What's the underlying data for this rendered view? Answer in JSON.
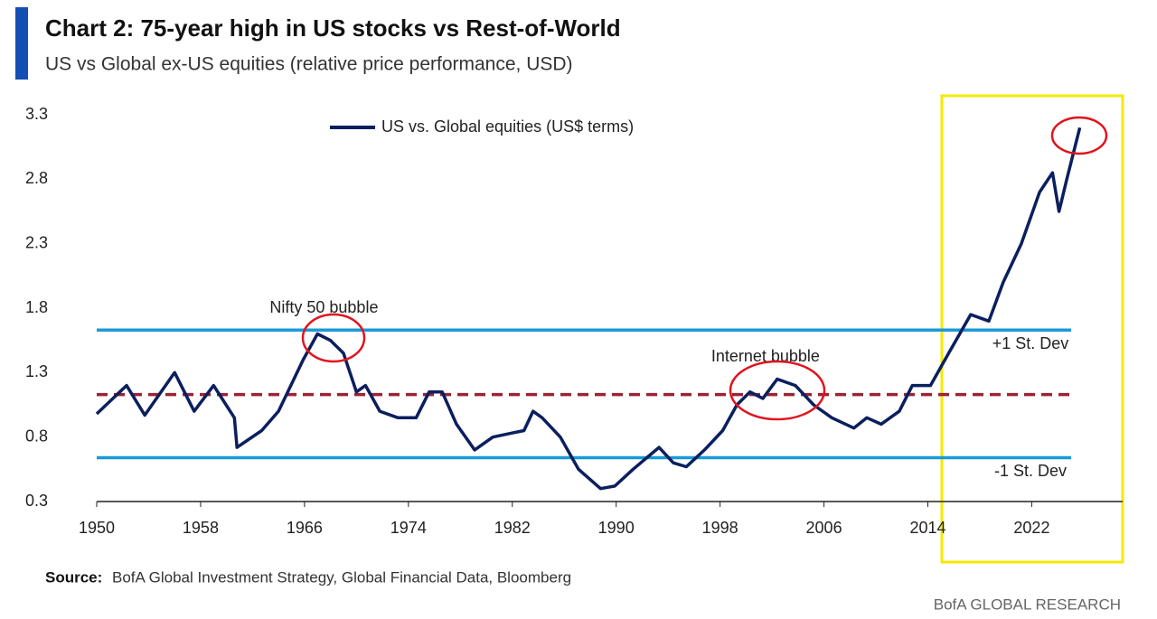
{
  "chart_data": {
    "type": "line",
    "title": "Chart 2: 75-year high in US stocks vs Rest-of-World",
    "subtitle": "US vs Global ex-US equities (relative price performance, USD)",
    "x": [
      1950,
      1952.3,
      1953.7,
      1956,
      1957.5,
      1959,
      1960.6,
      1960.8,
      1962.7,
      1964,
      1965.9,
      1967,
      1968,
      1969,
      1970,
      1970.7,
      1971.8,
      1973.2,
      1974.6,
      1975.6,
      1976.6,
      1977.7,
      1979.1,
      1980.5,
      1981.9,
      1982.9,
      1983.6,
      1984.3,
      1985.7,
      1987.1,
      1988.8,
      1989.9,
      1991.3,
      1993.3,
      1994.4,
      1995.4,
      1996.8,
      1998.2,
      1999.3,
      2000.3,
      2001.3,
      2002.4,
      2003.8,
      2005.2,
      2006.6,
      2008.3,
      2009.3,
      2010.4,
      2011.8,
      2012.8,
      2014.2,
      2015.6,
      2017.3,
      2018.7,
      2019.8,
      2021.2,
      2022.6,
      2023.6,
      2024.1,
      2024.7,
      2025.7
    ],
    "series": [
      {
        "name": "US vs. Global equities (US$ terms)",
        "color": "#0b1f5e",
        "values": [
          0.98,
          1.2,
          0.97,
          1.3,
          1.0,
          1.2,
          0.95,
          0.72,
          0.85,
          1.0,
          1.4,
          1.6,
          1.55,
          1.45,
          1.15,
          1.2,
          1.0,
          0.95,
          0.95,
          1.15,
          1.15,
          0.9,
          0.7,
          0.8,
          0.83,
          0.85,
          1.0,
          0.95,
          0.8,
          0.55,
          0.4,
          0.42,
          0.55,
          0.72,
          0.6,
          0.57,
          0.7,
          0.85,
          1.05,
          1.15,
          1.1,
          1.25,
          1.2,
          1.05,
          0.95,
          0.87,
          0.95,
          0.9,
          1.0,
          1.2,
          1.2,
          1.45,
          1.75,
          1.7,
          2.0,
          2.3,
          2.7,
          2.85,
          2.55,
          2.8,
          3.2
        ]
      }
    ],
    "reference_lines": [
      {
        "label": "+1 St. Dev",
        "value": 1.63,
        "color": "#1a9ad6",
        "style": "solid"
      },
      {
        "value": 1.13,
        "color": "#9b2335",
        "style": "dashed"
      },
      {
        "label": "-1 St. Dev",
        "value": 0.64,
        "color": "#1a9ad6",
        "style": "solid"
      }
    ],
    "annotations": [
      {
        "text": "Nifty 50 bubble",
        "x": 1967.5,
        "y": 1.8
      },
      {
        "text": "Internet bubble",
        "x": 2001.5,
        "y": 1.42
      }
    ],
    "xlim": [
      1950,
      2029
    ],
    "xticks": [
      1950,
      1958,
      1966,
      1974,
      1982,
      1990,
      1998,
      2006,
      2014,
      2022
    ],
    "ylim": [
      0.3,
      3.3
    ],
    "yticks": [
      0.3,
      0.8,
      1.3,
      1.8,
      2.3,
      2.8,
      3.3
    ],
    "legend": "top-center",
    "source_label": "Source:",
    "source_text": "BofA Global Investment Strategy, Global Financial Data, Bloomberg",
    "footer": "BofA GLOBAL RESEARCH"
  }
}
